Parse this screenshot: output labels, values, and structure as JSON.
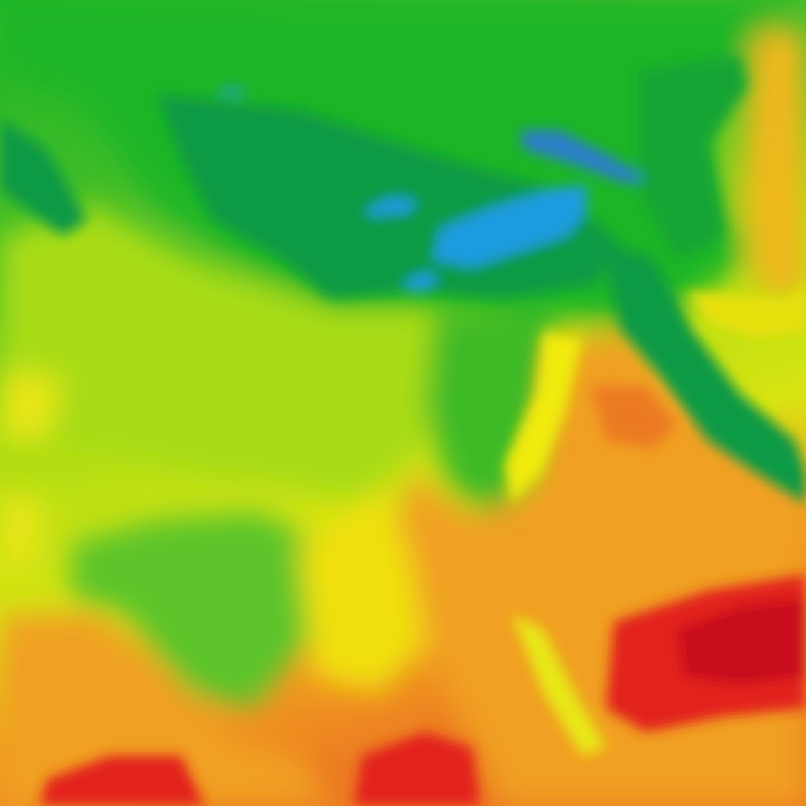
{
  "map": {
    "type": "temperature-heatmap-tile",
    "colors": {
      "cold_blue": "#1a9be0",
      "teal_green": "#0e9a45",
      "green": "#1fb526",
      "light_green": "#6cc82a",
      "lime": "#a8dc14",
      "yellow": "#f0ea10",
      "orange": "#f0a020",
      "dark_orange": "#ec7a22",
      "red": "#e2201e",
      "dark_red": "#c8081a"
    }
  }
}
